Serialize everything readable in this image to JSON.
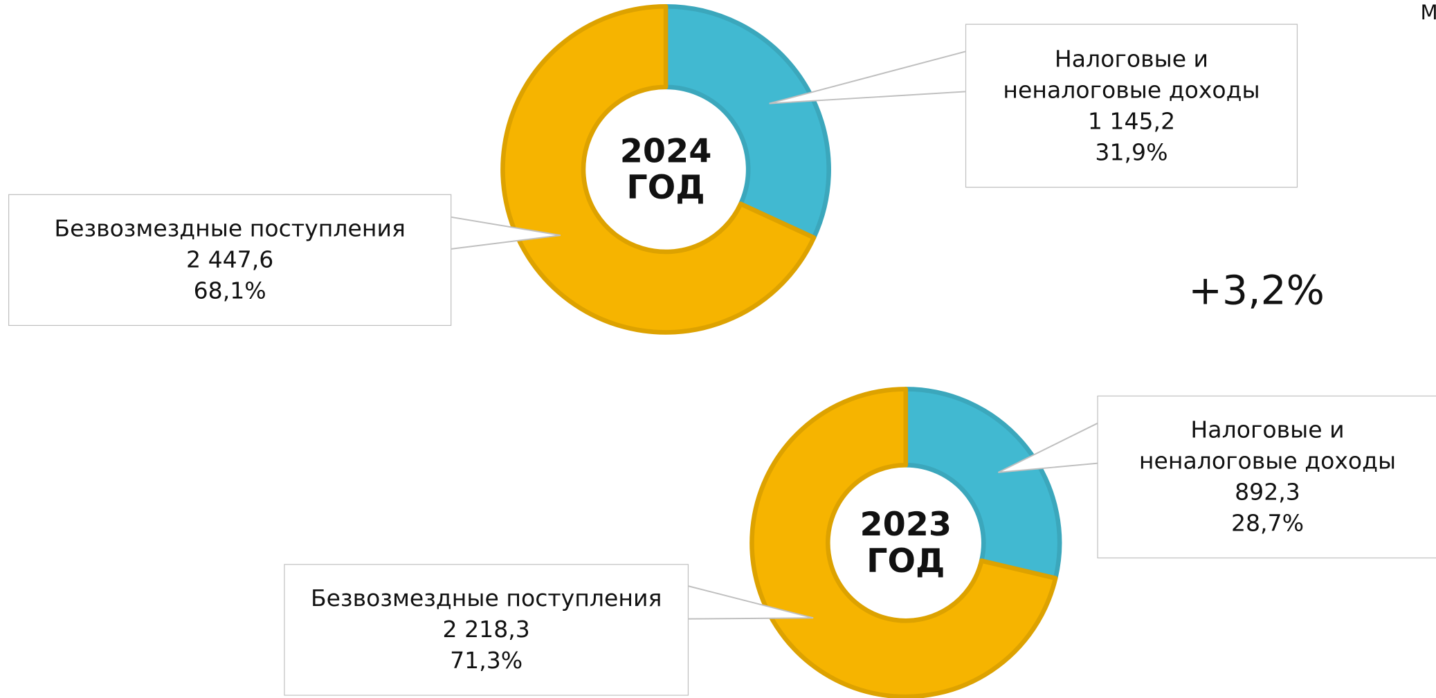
{
  "chart_data": [
    {
      "type": "donut",
      "title": [
        "2024",
        "ГОД"
      ],
      "categories": [
        "Налоговые и неналоговые доходы",
        "Безвозмездные поступления"
      ],
      "values": [
        1145.2,
        2447.6
      ],
      "value_labels": [
        "1 145,2",
        "2 447,6"
      ],
      "percents": [
        31.9,
        68.1
      ],
      "percent_labels": [
        "31,9%",
        "68,1%"
      ],
      "colors": [
        "#41b9d1",
        "#f6b400"
      ]
    },
    {
      "type": "donut",
      "title": [
        "2023",
        "ГОД"
      ],
      "categories": [
        "Налоговые и неналоговые доходы",
        "Безвозмездные поступления"
      ],
      "values": [
        892.3,
        2218.3
      ],
      "value_labels": [
        "892,3",
        "2 218,3"
      ],
      "percents": [
        28.7,
        71.3
      ],
      "percent_labels": [
        "28,7%",
        "71,3%"
      ],
      "colors": [
        "#41b9d1",
        "#f6b400"
      ]
    }
  ],
  "annotations": [
    "+3,2%",
    "М"
  ]
}
